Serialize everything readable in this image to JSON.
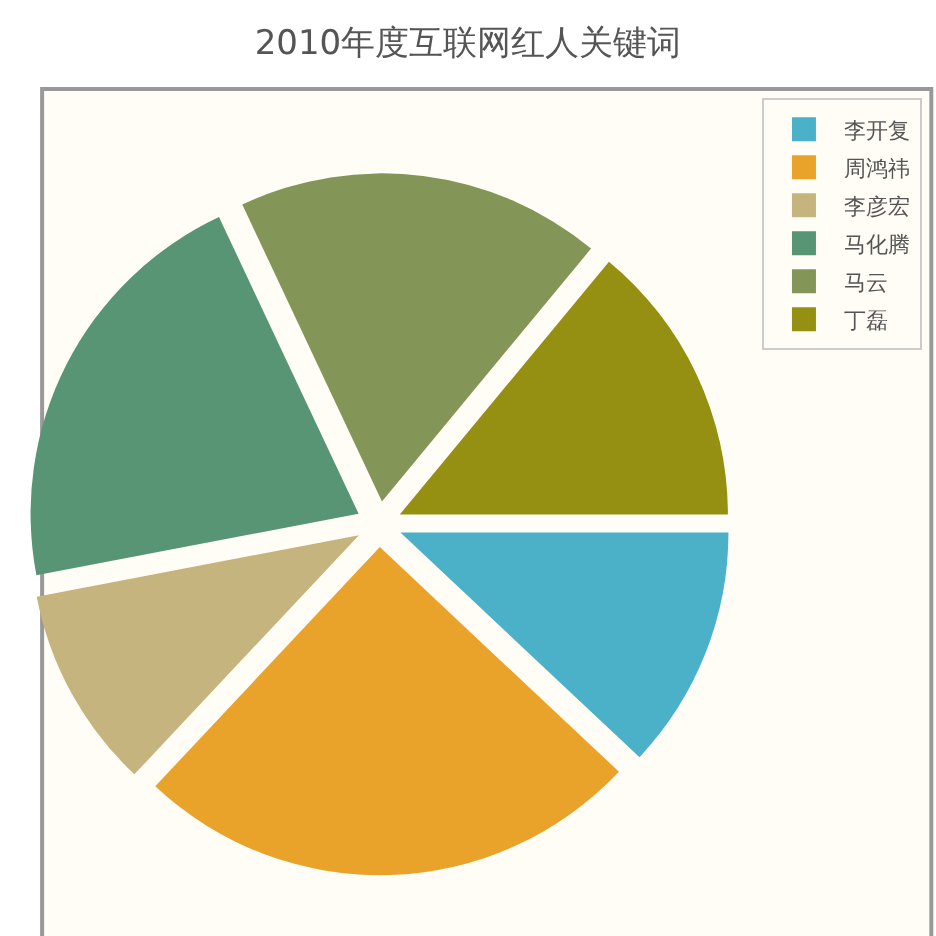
{
  "chart_data": {
    "type": "pie",
    "title": "2010年度互联网红人关键词",
    "categories": [
      "李开复",
      "周鸿祎",
      "李彦宏",
      "马化腾",
      "马云",
      "丁磊"
    ],
    "values": [
      12,
      25,
      10,
      21,
      18,
      14
    ],
    "colors": [
      "#4bb1c8",
      "#e9a32a",
      "#c6b47e",
      "#579575",
      "#839557",
      "#958f12"
    ],
    "legend": "top right"
  }
}
